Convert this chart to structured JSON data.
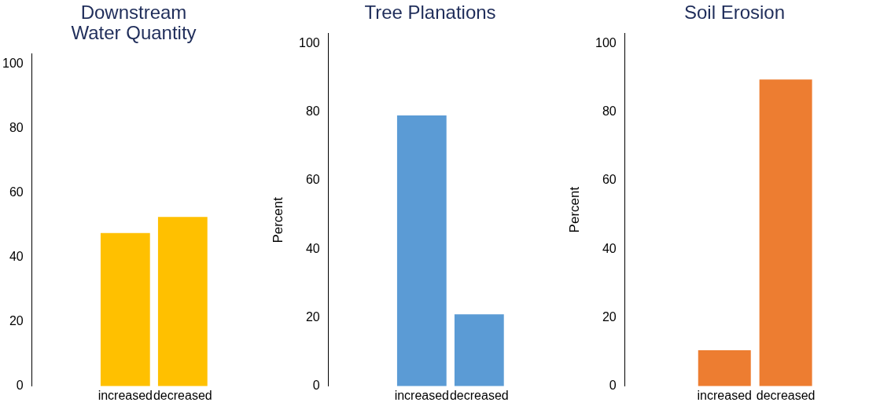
{
  "chart_data": [
    {
      "type": "bar",
      "title": [
        "Downstream",
        "Water Quantity"
      ],
      "ylabel": "Percent",
      "categories": [
        "increased",
        "decreased"
      ],
      "values": [
        47.5,
        52.5
      ],
      "color": "#ffc000",
      "ylim": [
        0,
        103
      ],
      "yticks": [
        0,
        20,
        40,
        60,
        80,
        100
      ],
      "grid": false,
      "legend": false
    },
    {
      "type": "bar",
      "title": "Tree Planations",
      "ylabel": "Percent",
      "categories": [
        "increased",
        "decreased"
      ],
      "values": [
        79,
        21
      ],
      "color": "#5b9bd5",
      "ylim": [
        0,
        103
      ],
      "yticks": [
        0,
        20,
        40,
        60,
        80,
        100
      ],
      "grid": false,
      "legend": false
    },
    {
      "type": "bar",
      "title": "Soil Erosion",
      "categories": [
        "increased",
        "decreased"
      ],
      "values": [
        10.5,
        89.5
      ],
      "color": "#ed7d31",
      "ylim": [
        0,
        103
      ],
      "yticks": [
        0,
        20,
        40,
        60,
        80,
        100
      ],
      "grid": false,
      "legend": false
    }
  ]
}
